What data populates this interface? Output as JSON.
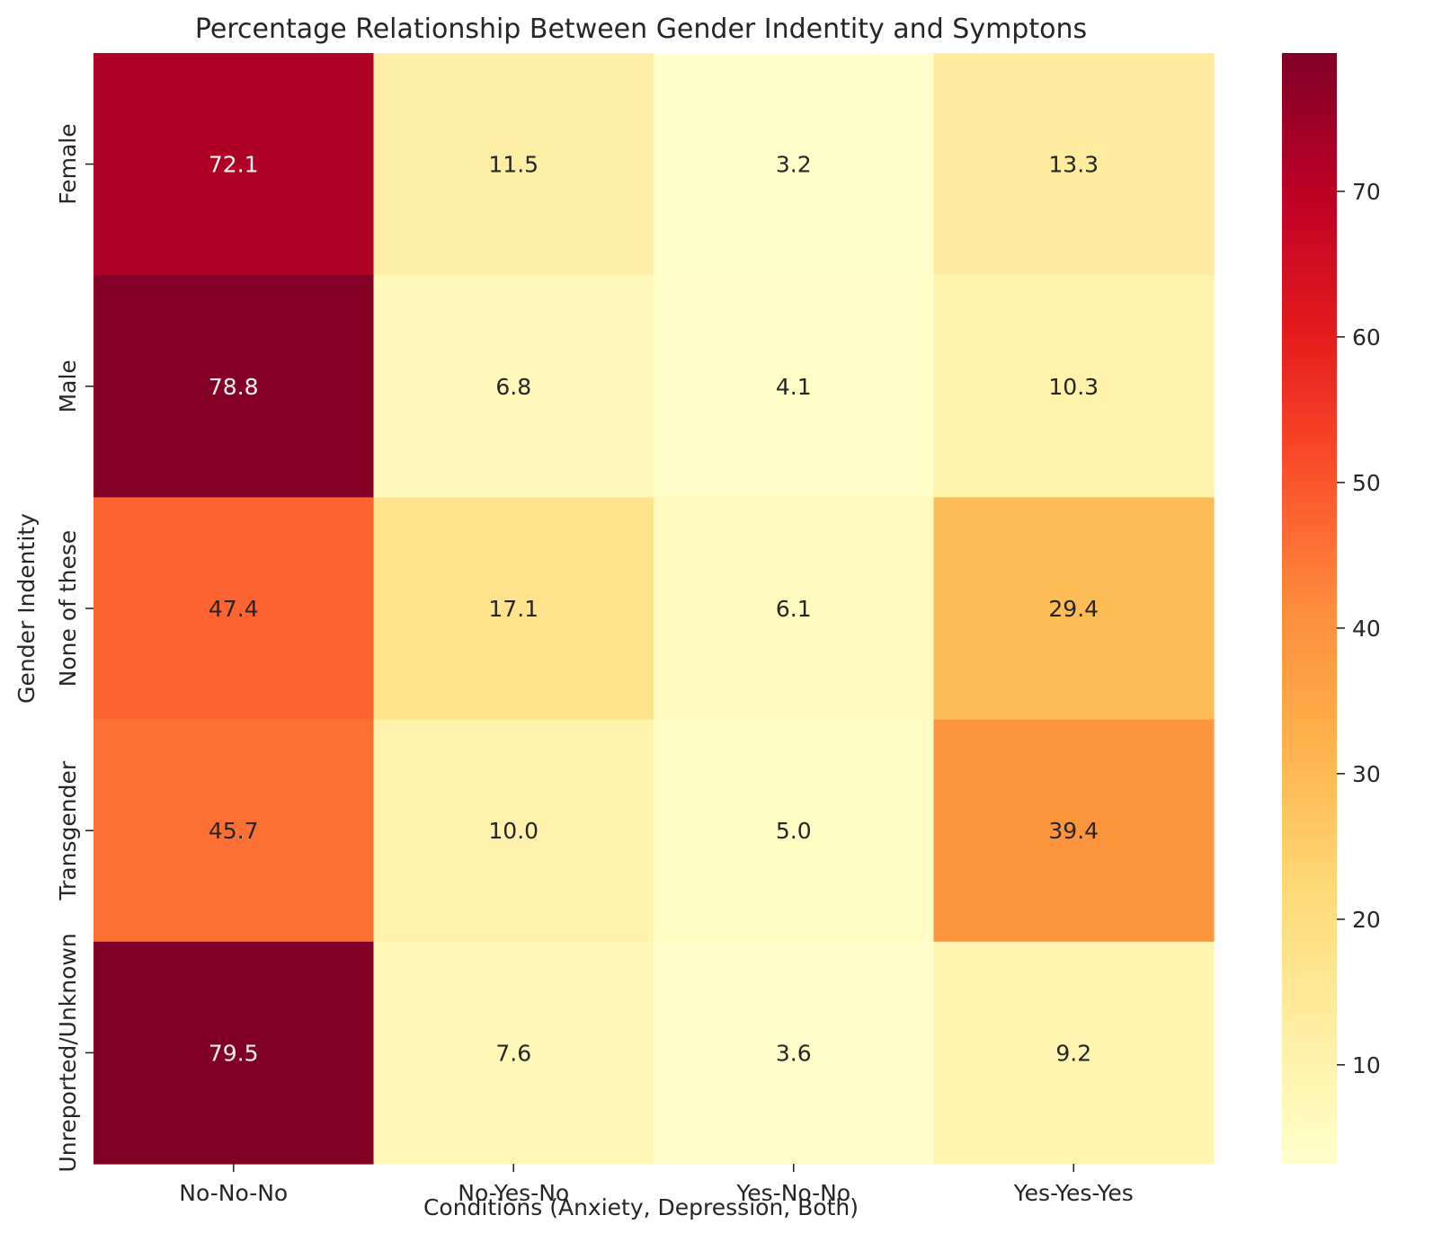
{
  "chart_data": {
    "type": "heatmap",
    "title": "Percentage Relationship Between Gender Indentity and Symptons",
    "xlabel": "Conditions (Anxiety, Depression, Both)",
    "ylabel": "Gender Indentity",
    "x_categories": [
      "No-No-No",
      "No-Yes-No",
      "Yes-No-No",
      "Yes-Yes-Yes"
    ],
    "y_categories": [
      "Female",
      "Male",
      "None of these",
      "Transgender",
      "Unreported/Unknown"
    ],
    "values": [
      [
        72.1,
        11.5,
        3.2,
        13.3
      ],
      [
        78.8,
        6.8,
        4.1,
        10.3
      ],
      [
        47.4,
        17.1,
        6.1,
        29.4
      ],
      [
        45.7,
        10.0,
        5.0,
        39.4
      ],
      [
        79.5,
        7.6,
        3.6,
        9.2
      ]
    ],
    "value_format": "0.1f",
    "colormap": "YlOrRd",
    "colorbar": {
      "range": [
        3.2,
        79.5
      ],
      "ticks": [
        10,
        20,
        30,
        40,
        50,
        60,
        70
      ],
      "position": "right"
    },
    "grid": false,
    "light_text_color": "#f2f2f2",
    "dark_text_color": "#262626"
  }
}
